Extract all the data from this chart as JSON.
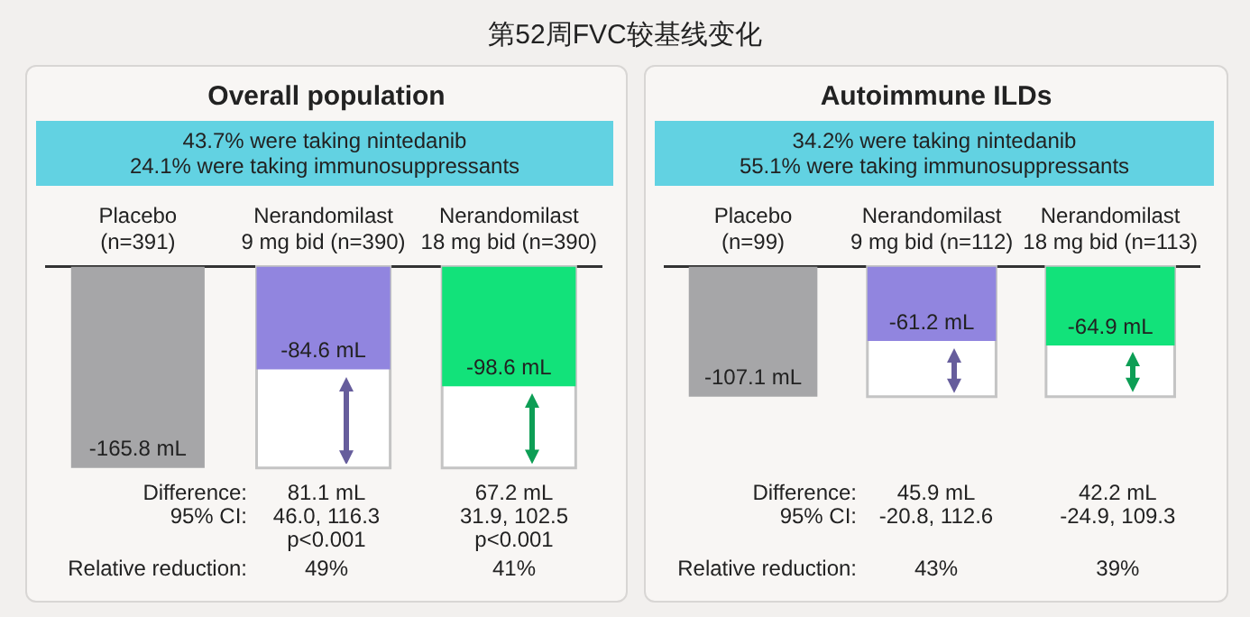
{
  "chart_data": [
    {
      "type": "other",
      "title": "第52周FVC较基线变化"
    },
    {
      "type": "bar",
      "title": "Overall population",
      "subtitle": "43.7% were taking nintedanib\n24.1% were taking immunosuppressants",
      "categories": [
        "Placebo\n(n=391)",
        "Nerandomilast\n9 mg bid (n=390)",
        "Nerandomilast\n18 mg bid (n=390)"
      ],
      "values": [
        -165.8,
        -84.6,
        -98.6
      ],
      "colors": [
        "#a6a6a8",
        "#9185df",
        "#12e27a"
      ],
      "value_labels": [
        "-165.8 mL",
        "-84.6 mL",
        "-98.6 mL"
      ],
      "grid": false,
      "legend": false,
      "annotations": [
        "Difference:\n95% CI:",
        "Relative reduction:",
        "81.1 mL\n46.0, 116.3\np<0.001",
        "49%",
        "67.2 mL\n31.9, 102.5\np<0.001",
        "41%"
      ]
    },
    {
      "type": "bar",
      "title": "Autoimmune ILDs",
      "subtitle": "34.2% were taking nintedanib\n55.1% were taking immunosuppressants",
      "categories": [
        "Placebo\n(n=99)",
        "Nerandomilast\n9 mg bid (n=112)",
        "Nerandomilast\n18 mg bid (n=113)"
      ],
      "values": [
        -107.1,
        -61.2,
        -64.9
      ],
      "colors": [
        "#a6a6a8",
        "#9185df",
        "#12e27a"
      ],
      "value_labels": [
        "-107.1 mL",
        "-61.2 mL",
        "-64.9 mL"
      ],
      "grid": false,
      "legend": false,
      "annotations": [
        "Difference:\n95% CI:",
        "Relative reduction:",
        "45.9 mL\n-20.8, 112.6",
        "43%",
        "42.2 mL\n-24.9, 109.3",
        "39%"
      ]
    }
  ]
}
